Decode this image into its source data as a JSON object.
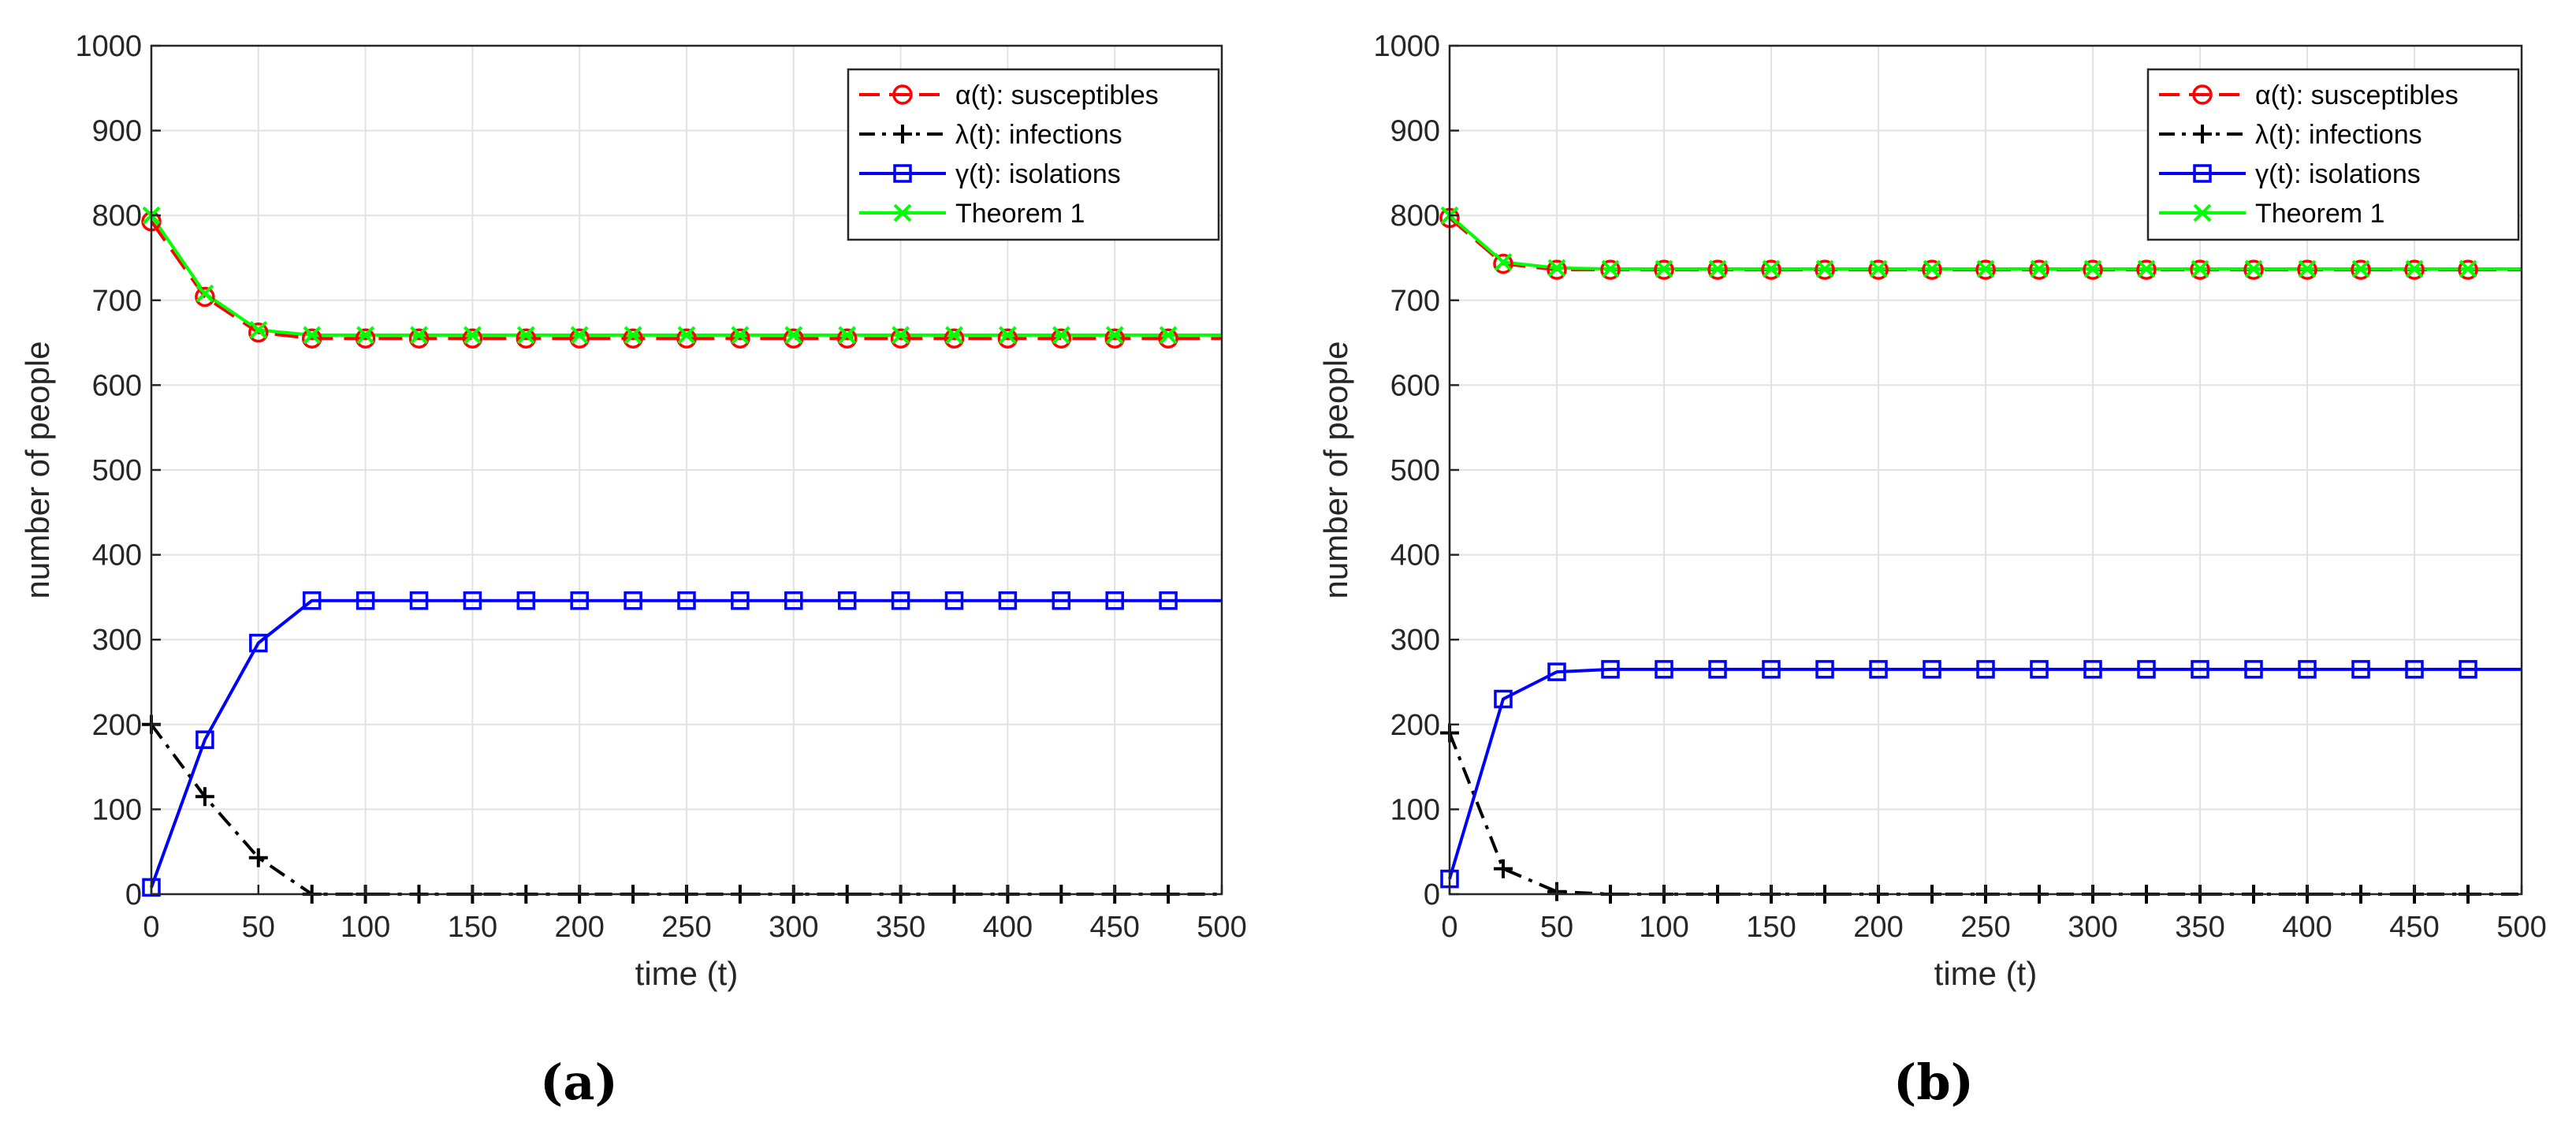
{
  "figure": {
    "captions": [
      "(a)",
      "(b)"
    ]
  },
  "chart_data": [
    {
      "type": "line",
      "panel": "(a)",
      "title": "",
      "xlabel": "time (t)",
      "ylabel": "number of people",
      "xlim": [
        0,
        500
      ],
      "ylim": [
        0,
        1000
      ],
      "xticks": [
        0,
        50,
        100,
        150,
        200,
        250,
        300,
        350,
        400,
        450,
        500
      ],
      "yticks": [
        0,
        100,
        200,
        300,
        400,
        500,
        600,
        700,
        800,
        900,
        1000
      ],
      "grid": true,
      "legend_position": "top-right",
      "series": [
        {
          "name": "α(t): susceptibles",
          "color": "#ff0000",
          "line": "dashed",
          "marker": "circle",
          "x": [
            0,
            25,
            50,
            75,
            100,
            125,
            150,
            175,
            200,
            225,
            250,
            275,
            300,
            325,
            350,
            375,
            400,
            425,
            450,
            475,
            500
          ],
          "y": [
            793,
            704,
            662,
            655,
            655,
            655,
            655,
            655,
            655,
            655,
            655,
            655,
            655,
            655,
            655,
            655,
            655,
            655,
            655,
            655,
            655
          ]
        },
        {
          "name": "λ(t): infections",
          "color": "#000000",
          "line": "dashdot",
          "marker": "plus",
          "x": [
            0,
            25,
            50,
            75,
            100,
            125,
            150,
            175,
            200,
            225,
            250,
            275,
            300,
            325,
            350,
            375,
            400,
            425,
            450,
            475,
            500
          ],
          "y": [
            200,
            115,
            43,
            0,
            0,
            0,
            0,
            0,
            0,
            0,
            0,
            0,
            0,
            0,
            0,
            0,
            0,
            0,
            0,
            0,
            0
          ]
        },
        {
          "name": "γ(t): isolations",
          "color": "#0000ff",
          "line": "solid",
          "marker": "square",
          "x": [
            0,
            25,
            50,
            75,
            100,
            125,
            150,
            175,
            200,
            225,
            250,
            275,
            300,
            325,
            350,
            375,
            400,
            425,
            450,
            475,
            500
          ],
          "y": [
            8,
            182,
            296,
            346,
            346,
            346,
            346,
            346,
            346,
            346,
            346,
            346,
            346,
            346,
            346,
            346,
            346,
            346,
            346,
            346,
            346
          ]
        },
        {
          "name": "Theorem 1",
          "color": "#00ff00",
          "line": "solid",
          "marker": "x",
          "x": [
            0,
            25,
            50,
            75,
            100,
            125,
            150,
            175,
            200,
            225,
            250,
            275,
            300,
            325,
            350,
            375,
            400,
            425,
            450,
            475,
            500
          ],
          "y": [
            800,
            708,
            665,
            659,
            659,
            659,
            659,
            659,
            659,
            659,
            659,
            659,
            659,
            659,
            659,
            659,
            659,
            659,
            659,
            659,
            659
          ]
        }
      ]
    },
    {
      "type": "line",
      "panel": "(b)",
      "title": "",
      "xlabel": "time (t)",
      "ylabel": "number of people",
      "xlim": [
        0,
        500
      ],
      "ylim": [
        0,
        1000
      ],
      "xticks": [
        0,
        50,
        100,
        150,
        200,
        250,
        300,
        350,
        400,
        450,
        500
      ],
      "yticks": [
        0,
        100,
        200,
        300,
        400,
        500,
        600,
        700,
        800,
        900,
        1000
      ],
      "grid": true,
      "legend_position": "top-right",
      "series": [
        {
          "name": "α(t): susceptibles",
          "color": "#ff0000",
          "line": "dashed",
          "marker": "circle",
          "x": [
            0,
            25,
            50,
            75,
            100,
            125,
            150,
            175,
            200,
            225,
            250,
            275,
            300,
            325,
            350,
            375,
            400,
            425,
            450,
            475,
            500
          ],
          "y": [
            797,
            743,
            736,
            736,
            736,
            736,
            736,
            736,
            736,
            736,
            736,
            736,
            736,
            736,
            736,
            736,
            736,
            736,
            736,
            736,
            736
          ]
        },
        {
          "name": "λ(t): infections",
          "color": "#000000",
          "line": "dashdot",
          "marker": "plus",
          "x": [
            0,
            25,
            50,
            75,
            100,
            125,
            150,
            175,
            200,
            225,
            250,
            275,
            300,
            325,
            350,
            375,
            400,
            425,
            450,
            475,
            500
          ],
          "y": [
            190,
            30,
            3,
            0,
            0,
            0,
            0,
            0,
            0,
            0,
            0,
            0,
            0,
            0,
            0,
            0,
            0,
            0,
            0,
            0,
            0
          ]
        },
        {
          "name": "γ(t): isolations",
          "color": "#0000ff",
          "line": "solid",
          "marker": "square",
          "x": [
            0,
            25,
            50,
            75,
            100,
            125,
            150,
            175,
            200,
            225,
            250,
            275,
            300,
            325,
            350,
            375,
            400,
            425,
            450,
            475,
            500
          ],
          "y": [
            18,
            230,
            262,
            265,
            265,
            265,
            265,
            265,
            265,
            265,
            265,
            265,
            265,
            265,
            265,
            265,
            265,
            265,
            265,
            265,
            265
          ]
        },
        {
          "name": "Theorem 1",
          "color": "#00ff00",
          "line": "solid",
          "marker": "x",
          "x": [
            0,
            25,
            50,
            75,
            100,
            125,
            150,
            175,
            200,
            225,
            250,
            275,
            300,
            325,
            350,
            375,
            400,
            425,
            450,
            475,
            500
          ],
          "y": [
            800,
            745,
            738,
            737,
            737,
            737,
            737,
            737,
            737,
            737,
            737,
            737,
            737,
            737,
            737,
            737,
            737,
            737,
            737,
            737,
            737
          ]
        }
      ]
    }
  ]
}
